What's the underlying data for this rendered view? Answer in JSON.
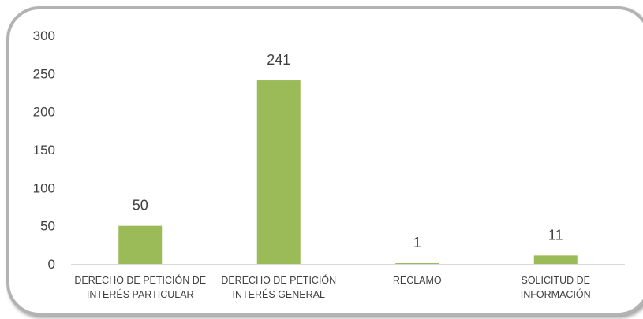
{
  "chart_data": {
    "type": "bar",
    "categories": [
      [
        "DERECHO DE PETICIÓN DE",
        "INTERÉS PARTICULAR"
      ],
      [
        "DERECHO DE PETICIÓN",
        "INTERÉS GENERAL"
      ],
      [
        "RECLAMO"
      ],
      [
        "SOLICITUD DE",
        "INFORMACIÓN"
      ]
    ],
    "values": [
      50,
      241,
      1,
      11
    ],
    "ylim": [
      0,
      300
    ],
    "yticks": [
      0,
      50,
      100,
      150,
      200,
      250,
      300
    ],
    "title": "",
    "xlabel": "",
    "ylabel": "",
    "grid": false,
    "legend": "none",
    "bar_color": "#9bbb59",
    "axis_color": "#d9d9d9"
  }
}
